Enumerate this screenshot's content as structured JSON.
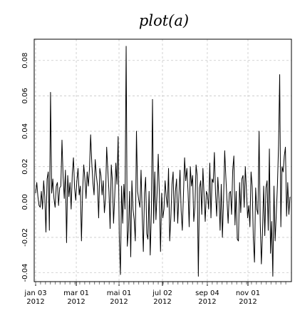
{
  "chart_data": {
    "type": "line",
    "title": "plot(a)",
    "xlabel": "",
    "ylabel": "",
    "ylim": [
      -0.045,
      0.092
    ],
    "grid": true,
    "legend": "none",
    "x_start": "2012-01-03",
    "x_end": "2012-12-31",
    "y_ticks": [
      "-0.04",
      "-0.02",
      "0.00",
      "0.02",
      "0.04",
      "0.06",
      "0.08"
    ],
    "x_ticks": [
      {
        "date": "2012-01-03",
        "line1": "jan 03",
        "line2": "2012"
      },
      {
        "date": "2012-03-01",
        "line1": "mar 01",
        "line2": "2012"
      },
      {
        "date": "2012-05-01",
        "line1": "mai 01",
        "line2": "2012"
      },
      {
        "date": "2012-07-02",
        "line1": "jul 02",
        "line2": "2012"
      },
      {
        "date": "2012-09-04",
        "line1": "sep 04",
        "line2": "2012"
      },
      {
        "date": "2012-11-01",
        "line1": "nov 01",
        "line2": "2012"
      }
    ],
    "series": [
      {
        "values": [
          0.005,
          0.011,
          0.003,
          -0.002,
          -0.003,
          0.006,
          -0.004,
          0.012,
          0.003,
          -0.017,
          0.013,
          0.017,
          -0.016,
          0.062,
          0.005,
          0.013,
          0.002,
          -0.003,
          0.009,
          0.011,
          -0.002,
          0.008,
          0.009,
          0.035,
          0.014,
          0.002,
          0.018,
          -0.023,
          0.015,
          0.003,
          0.011,
          -0.004,
          0.016,
          0.025,
          0.008,
          0.001,
          0.012,
          0.019,
          0.004,
          0.009,
          -0.022,
          0.006,
          0.021,
          0.013,
          0.002,
          0.017,
          0.009,
          0.019,
          0.038,
          0.022,
          0.011,
          0.004,
          0.024,
          0.015,
          0.009,
          -0.009,
          0.019,
          0.015,
          0.004,
          0.012,
          -0.006,
          0.002,
          0.031,
          0.018,
          0.006,
          -0.015,
          0.021,
          0.012,
          -0.012,
          0.003,
          0.022,
          0.01,
          0.037,
          -0.02,
          -0.041,
          0.009,
          -0.012,
          0.01,
          -0.004,
          0.088,
          -0.025,
          -0.016,
          0.006,
          -0.031,
          0.012,
          -0.004,
          -0.01,
          -0.022,
          0.04,
          0.006,
          0.001,
          -0.003,
          0.018,
          -0.007,
          -0.028,
          0.005,
          0.014,
          -0.018,
          -0.021,
          0.006,
          -0.03,
          -0.006,
          0.058,
          -0.012,
          0.017,
          -0.01,
          0.005,
          0.027,
          0.004,
          -0.028,
          0.005,
          -0.009,
          -0.004,
          0.012,
          0.003,
          -0.003,
          0.019,
          -0.022,
          -0.009,
          0.01,
          0.017,
          -0.011,
          0.006,
          0.013,
          -0.012,
          0.003,
          0.018,
          -0.005,
          -0.016,
          0.004,
          0.025,
          0.012,
          0.019,
          0.006,
          -0.014,
          0.02,
          0.009,
          0.015,
          -0.011,
          -0.003,
          0.021,
          0.015,
          -0.042,
          0.008,
          0.012,
          -0.007,
          0.019,
          0.004,
          -0.011,
          0.006,
          0.004,
          -0.004,
          0.022,
          -0.009,
          0.013,
          0.011,
          0.028,
          0.005,
          -0.008,
          0.014,
          0.002,
          -0.016,
          0.01,
          -0.02,
          0.001,
          0.029,
          0.014,
          0.001,
          -0.012,
          0.005,
          0.006,
          -0.007,
          0.018,
          0.026,
          -0.013,
          0.006,
          -0.021,
          -0.022,
          0.011,
          -0.006,
          0.013,
          0.015,
          -0.003,
          0.02,
          0.006,
          -0.009,
          -0.002,
          -0.014,
          0.017,
          0.009,
          -0.021,
          -0.034,
          0.008,
          -0.004,
          -0.007,
          0.04,
          -0.011,
          -0.035,
          -0.017,
          0.009,
          -0.019,
          0.008,
          0.012,
          -0.016,
          0.03,
          -0.029,
          -0.011,
          -0.042,
          0.009,
          -0.022,
          -0.007,
          0.009,
          0.032,
          0.072,
          -0.014,
          0.02,
          0.017,
          0.026,
          0.031,
          -0.008,
          0.011,
          -0.007,
          0.003
        ]
      }
    ]
  }
}
